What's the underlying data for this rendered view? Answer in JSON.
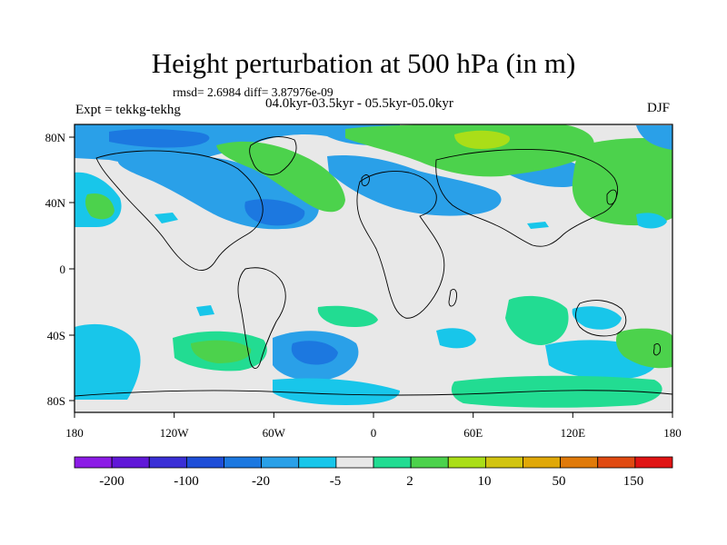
{
  "title": "Height perturbation at 500 hPa (in m)",
  "stats_text": "rmsd= 2.6984 diff= 3.87976e-09",
  "period_text": "04.0kyr-03.5kyr - 05.5kyr-05.0kyr",
  "experiment_text": "Expt = tekkg-tekhg",
  "season": "DJF",
  "axes": {
    "lon_ticks": [
      "180",
      "120W",
      "60W",
      "0",
      "60E",
      "120E",
      "180"
    ],
    "lat_ticks": [
      "80N",
      "40N",
      "0",
      "40S",
      "80S"
    ]
  },
  "colorbar": {
    "labels": [
      "-200",
      "-100",
      "-20",
      "-5",
      "2",
      "10",
      "50",
      "150"
    ],
    "colors": [
      "#8c1ce6",
      "#6018d8",
      "#3a2fd6",
      "#1e4ed8",
      "#1c78e0",
      "#2aa0e8",
      "#18c6ea",
      "#e8e8e8",
      "#22dc92",
      "#4cd24c",
      "#aade18",
      "#d2c410",
      "#e0a808",
      "#e07a0a",
      "#e04a12",
      "#e01414"
    ]
  },
  "palette": {
    "land_neutral": "#e8e8e8",
    "light_blue": "#18c6ea",
    "blue": "#2aa0e8",
    "deep_blue": "#1c78e0",
    "teal_green": "#22dc92",
    "green": "#4cd24c",
    "yellow_green": "#aade18"
  }
}
